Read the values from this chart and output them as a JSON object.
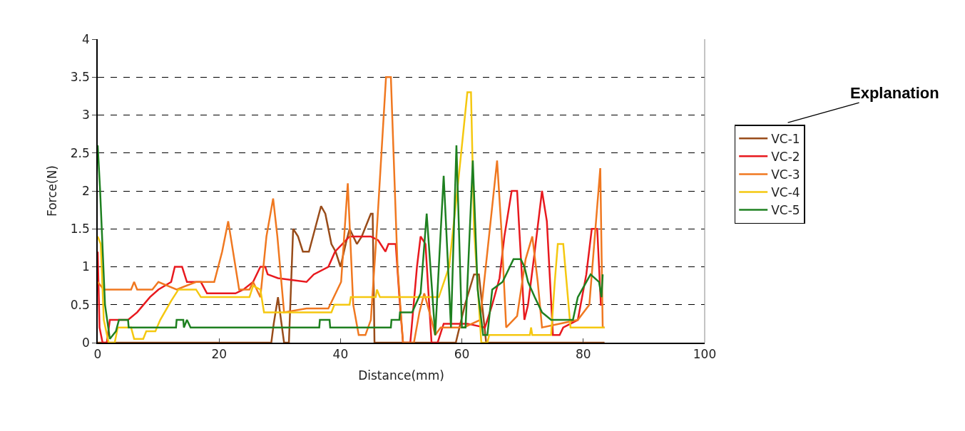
{
  "chart_data": {
    "type": "line",
    "xlabel": "Distance(mm)",
    "ylabel": "Force(N)",
    "xlim": [
      0,
      100
    ],
    "xticks": [
      0,
      20,
      40,
      60,
      80,
      100
    ],
    "ylim": [
      0,
      4
    ],
    "yticks": [
      0,
      0.5,
      1,
      1.5,
      2,
      2.5,
      3,
      3.5,
      4
    ],
    "grid": "y",
    "legend": "right",
    "marker": "none",
    "line_style": "solid",
    "annotations": [
      "Explanation"
    ],
    "series": [
      {
        "name": "VC-1",
        "color": "#994c1a",
        "x": [
          0,
          28.6,
          29,
          29.7,
          30.2,
          30.7,
          31.5,
          32.2,
          33,
          33.8,
          34.8,
          35.8,
          36.8,
          37.5,
          38.5,
          39.2,
          40,
          41,
          41.5,
          42.7,
          43.5,
          45,
          45.3,
          45.6,
          59,
          60.5,
          62,
          62.8,
          64,
          83.5
        ],
        "values": [
          0,
          0,
          0.25,
          0.6,
          0.3,
          0,
          0,
          1.5,
          1.4,
          1.2,
          1.2,
          1.5,
          1.8,
          1.7,
          1.3,
          1.2,
          1.0,
          1.35,
          1.5,
          1.3,
          1.4,
          1.7,
          1.7,
          0,
          0,
          0.5,
          0.9,
          0.9,
          0,
          0
        ]
      },
      {
        "name": "VC-2",
        "color": "#e8191e",
        "x": [
          0,
          0.3,
          0.8,
          1.5,
          2,
          3.2,
          5,
          6.5,
          8.6,
          10,
          12.1,
          12.7,
          13.9,
          14.7,
          17,
          18,
          22.7,
          24,
          25.6,
          26.8,
          27.6,
          28,
          29.7,
          34.4,
          35.6,
          38,
          39.1,
          41.5,
          45,
          46.2,
          47.4,
          47.9,
          49.1,
          49.7,
          50.3,
          51.5,
          52.6,
          53.2,
          54,
          55,
          56,
          57,
          60.9,
          63.8,
          65,
          66.2,
          67,
          68.2,
          69.1,
          70.3,
          70.9,
          72,
          73.2,
          74,
          75,
          76.1,
          76.7,
          79.1,
          80.5,
          81.4,
          82.3,
          82.9,
          83.3
        ],
        "values": [
          1.2,
          0.2,
          0,
          0,
          0.3,
          0.3,
          0.3,
          0.4,
          0.6,
          0.7,
          0.8,
          1.0,
          1.0,
          0.8,
          0.8,
          0.65,
          0.65,
          0.7,
          0.8,
          1.0,
          1.0,
          0.9,
          0.85,
          0.8,
          0.9,
          1.0,
          1.2,
          1.4,
          1.4,
          1.35,
          1.2,
          1.3,
          1.3,
          0.6,
          0,
          0,
          1.0,
          1.4,
          1.3,
          0,
          0,
          0.25,
          0.25,
          0.2,
          0.5,
          0.85,
          1.4,
          2.0,
          2.0,
          0.3,
          0.5,
          1.2,
          2.0,
          1.6,
          0.1,
          0.1,
          0.2,
          0.3,
          0.9,
          1.5,
          1.5,
          0.5,
          0.5
        ]
      },
      {
        "name": "VC-3",
        "color": "#f07820",
        "x": [
          0,
          1,
          3,
          5.5,
          6,
          6.5,
          9,
          10,
          13,
          16.2,
          19.2,
          20.5,
          21.5,
          22.5,
          23.3,
          25,
          25.6,
          26.8,
          27.8,
          28.9,
          29.6,
          30.7,
          34.4,
          38,
          40.1,
          41.2,
          42.1,
          43,
          44.1,
          45,
          46,
          47.5,
          48.3,
          49.4,
          50.3,
          52.1,
          53,
          53.8,
          55,
          55.6,
          56.5,
          60.3,
          63,
          65,
          65.8,
          66.5,
          67.3,
          69.1,
          70.5,
          71.6,
          72.5,
          73.2,
          79.1,
          81,
          82,
          82.8,
          83.2,
          83.5
        ],
        "values": [
          0.8,
          0.7,
          0.7,
          0.7,
          0.8,
          0.7,
          0.7,
          0.8,
          0.7,
          0.8,
          0.8,
          1.2,
          1.6,
          1.1,
          0.7,
          0.7,
          0.8,
          0.6,
          1.4,
          1.9,
          1.4,
          0.4,
          0.45,
          0.45,
          0.8,
          2.1,
          0.5,
          0.1,
          0.1,
          0.3,
          1.5,
          3.5,
          3.5,
          1.0,
          0,
          0,
          0.4,
          0.65,
          0.3,
          0.1,
          0.2,
          0.2,
          0.3,
          1.8,
          2.4,
          1.5,
          0.2,
          0.35,
          1.1,
          1.4,
          0.8,
          0.2,
          0.3,
          0.5,
          1.5,
          2.3,
          0.2,
          0.2
        ]
      },
      {
        "name": "VC-4",
        "color": "#f5c810",
        "x": [
          0,
          0.5,
          1,
          1.8,
          2.8,
          3.3,
          5.5,
          6,
          7.5,
          8,
          9.5,
          10.3,
          12.1,
          13.3,
          16.2,
          17,
          25,
          25.6,
          26.8,
          27.4,
          38.5,
          39,
          41.5,
          41.7,
          45.8,
          46,
          46.5,
          56.2,
          57.9,
          59.5,
          60.9,
          61.5,
          62,
          63.2,
          64.2,
          64.5,
          71.2,
          71.4,
          71.6,
          74.7,
          75.3,
          75.8,
          76.7,
          77.9,
          83.5
        ],
        "values": [
          1.4,
          1.3,
          0.3,
          0,
          0,
          0.2,
          0.2,
          0.05,
          0.05,
          0.15,
          0.15,
          0.3,
          0.55,
          0.7,
          0.7,
          0.6,
          0.6,
          0.75,
          0.7,
          0.4,
          0.4,
          0.5,
          0.5,
          0.6,
          0.6,
          0.7,
          0.6,
          0.6,
          1.0,
          2.2,
          3.3,
          3.3,
          1.5,
          0,
          0,
          0.1,
          0.1,
          0.2,
          0.1,
          0.1,
          0.8,
          1.3,
          1.3,
          0.2,
          0.2
        ]
      },
      {
        "name": "VC-5",
        "color": "#1e8020",
        "x": [
          0,
          0.4,
          1.2,
          2,
          3,
          3.5,
          5,
          5.1,
          12.9,
          13,
          14.1,
          14.2,
          14.7,
          15.3,
          36.5,
          36.6,
          38.2,
          38.3,
          48.3,
          48.4,
          49.7,
          49.8,
          51.8,
          53.2,
          54.2,
          55.6,
          57,
          58.2,
          59.1,
          60,
          60.6,
          61.8,
          62.6,
          63.5,
          64.2,
          65,
          66.7,
          67.9,
          68.5,
          69.7,
          70.3,
          70.9,
          72,
          73.2,
          74.7,
          78.3,
          79.1,
          80.5,
          81.2,
          82.6,
          83,
          83.2
        ],
        "values": [
          2.6,
          2.0,
          0.5,
          0.05,
          0.15,
          0.3,
          0.3,
          0.2,
          0.2,
          0.3,
          0.3,
          0.2,
          0.3,
          0.2,
          0.2,
          0.3,
          0.3,
          0.2,
          0.2,
          0.3,
          0.3,
          0.4,
          0.4,
          0.65,
          1.7,
          0.1,
          2.2,
          0.2,
          2.6,
          0.2,
          0.2,
          2.4,
          0.7,
          0.1,
          0.1,
          0.7,
          0.8,
          1.0,
          1.1,
          1.1,
          1.0,
          0.8,
          0.6,
          0.4,
          0.3,
          0.3,
          0.6,
          0.8,
          0.9,
          0.8,
          0.6,
          0.9
        ]
      }
    ]
  }
}
